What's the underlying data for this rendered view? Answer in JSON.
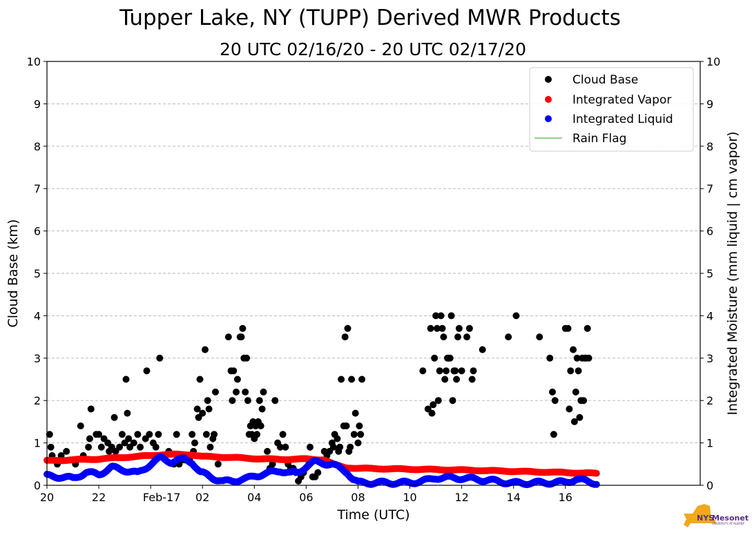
{
  "chart_data": {
    "type": "scatter",
    "title": "Tupper Lake, NY (TUPP) Derived MWR Products",
    "subtitle": "20 UTC 02/16/20 - 20 UTC 02/17/20",
    "xlabel": "Time (UTC)",
    "ylabel": "Cloud Base (km)",
    "y2label": "Integrated Moisture (mm liquid | cm vapor)",
    "xlim": [
      20,
      45.2
    ],
    "ylim": [
      0,
      10
    ],
    "y2lim": [
      0,
      10
    ],
    "x_units": "hours since 00 UTC 02/16/20",
    "x_ticks": [
      {
        "x": 20,
        "label": "20"
      },
      {
        "x": 22,
        "label": "22"
      },
      {
        "x": 24,
        "label": "Feb-17"
      },
      {
        "x": 26,
        "label": "02"
      },
      {
        "x": 28,
        "label": "04"
      },
      {
        "x": 30,
        "label": "06"
      },
      {
        "x": 32,
        "label": "08"
      },
      {
        "x": 34,
        "label": "10"
      },
      {
        "x": 36,
        "label": "12"
      },
      {
        "x": 38,
        "label": "14"
      },
      {
        "x": 40,
        "label": "16"
      }
    ],
    "y_ticks": [
      "0",
      "1",
      "2",
      "3",
      "4",
      "5",
      "6",
      "7",
      "8",
      "9",
      "10"
    ],
    "grid": "horizontal dashed",
    "legend_position": "top-right",
    "series": [
      {
        "name": "Cloud Base",
        "color": "#000000",
        "marker": "circle",
        "points": [
          [
            20.1,
            1.2
          ],
          [
            20.15,
            0.9
          ],
          [
            20.2,
            0.7
          ],
          [
            20.4,
            0.5
          ],
          [
            20.55,
            0.7
          ],
          [
            20.75,
            0.8
          ],
          [
            20.9,
            0.6
          ],
          [
            21.1,
            0.5
          ],
          [
            21.3,
            1.4
          ],
          [
            21.4,
            0.7
          ],
          [
            21.6,
            0.9
          ],
          [
            21.65,
            1.1
          ],
          [
            21.7,
            1.8
          ],
          [
            21.9,
            1.2
          ],
          [
            22.0,
            1.2
          ],
          [
            22.1,
            0.9
          ],
          [
            22.2,
            1.1
          ],
          [
            22.35,
            1.0
          ],
          [
            22.4,
            0.8
          ],
          [
            22.5,
            0.9
          ],
          [
            22.6,
            1.6
          ],
          [
            22.65,
            0.8
          ],
          [
            22.8,
            0.9
          ],
          [
            22.9,
            1.2
          ],
          [
            23.0,
            1.0
          ],
          [
            23.05,
            2.5
          ],
          [
            23.1,
            1.7
          ],
          [
            23.15,
            1.1
          ],
          [
            23.2,
            0.9
          ],
          [
            23.35,
            1.0
          ],
          [
            23.5,
            1.2
          ],
          [
            23.6,
            0.9
          ],
          [
            23.8,
            1.1
          ],
          [
            23.85,
            2.7
          ],
          [
            23.95,
            1.2
          ],
          [
            24.1,
            1.0
          ],
          [
            24.2,
            0.9
          ],
          [
            24.3,
            1.2
          ],
          [
            24.35,
            3.0
          ],
          [
            24.5,
            0.7
          ],
          [
            24.7,
            0.8
          ],
          [
            24.9,
            0.5
          ],
          [
            25.0,
            1.2
          ],
          [
            25.1,
            0.5
          ],
          [
            25.3,
            0.6
          ],
          [
            25.5,
            0.6
          ],
          [
            25.6,
            1.2
          ],
          [
            25.65,
            0.8
          ],
          [
            25.7,
            1.0
          ],
          [
            25.8,
            1.8
          ],
          [
            25.85,
            1.6
          ],
          [
            25.9,
            2.5
          ],
          [
            26.0,
            1.7
          ],
          [
            26.1,
            3.2
          ],
          [
            26.15,
            1.2
          ],
          [
            26.2,
            2.0
          ],
          [
            26.25,
            1.8
          ],
          [
            26.3,
            0.9
          ],
          [
            26.4,
            1.1
          ],
          [
            26.45,
            1.2
          ],
          [
            26.5,
            2.2
          ],
          [
            26.6,
            0.5
          ],
          [
            27.0,
            3.5
          ],
          [
            27.1,
            2.7
          ],
          [
            27.15,
            2.0
          ],
          [
            27.2,
            2.7
          ],
          [
            27.3,
            2.2
          ],
          [
            27.35,
            2.5
          ],
          [
            27.45,
            3.5
          ],
          [
            27.5,
            3.5
          ],
          [
            27.55,
            3.7
          ],
          [
            27.6,
            3.0
          ],
          [
            27.65,
            2.2
          ],
          [
            27.7,
            3.0
          ],
          [
            27.75,
            2.0
          ],
          [
            27.8,
            1.2
          ],
          [
            27.85,
            1.4
          ],
          [
            27.9,
            1.2
          ],
          [
            27.95,
            1.5
          ],
          [
            28.0,
            1.1
          ],
          [
            28.05,
            1.4
          ],
          [
            28.1,
            1.2
          ],
          [
            28.15,
            1.5
          ],
          [
            28.2,
            2.0
          ],
          [
            28.25,
            1.4
          ],
          [
            28.3,
            1.8
          ],
          [
            28.35,
            2.2
          ],
          [
            28.5,
            0.8
          ],
          [
            28.6,
            0.4
          ],
          [
            28.7,
            0.5
          ],
          [
            28.8,
            2.0
          ],
          [
            28.9,
            1.0
          ],
          [
            29.0,
            0.9
          ],
          [
            29.1,
            1.2
          ],
          [
            29.2,
            0.9
          ],
          [
            29.3,
            0.5
          ],
          [
            29.4,
            0.4
          ],
          [
            29.5,
            0.4
          ],
          [
            29.6,
            0.3
          ],
          [
            29.7,
            0.1
          ],
          [
            29.8,
            0.2
          ],
          [
            29.9,
            0.3
          ],
          [
            30.1,
            0.5
          ],
          [
            30.15,
            0.9
          ],
          [
            30.25,
            0.2
          ],
          [
            30.35,
            0.2
          ],
          [
            30.45,
            0.3
          ],
          [
            30.6,
            0.6
          ],
          [
            30.7,
            0.8
          ],
          [
            30.8,
            0.7
          ],
          [
            30.9,
            0.8
          ],
          [
            31.0,
            1.0
          ],
          [
            31.05,
            0.9
          ],
          [
            31.1,
            1.2
          ],
          [
            31.2,
            1.1
          ],
          [
            31.25,
            0.8
          ],
          [
            31.3,
            0.9
          ],
          [
            31.35,
            2.5
          ],
          [
            31.45,
            1.4
          ],
          [
            31.5,
            3.5
          ],
          [
            31.55,
            1.4
          ],
          [
            31.6,
            3.7
          ],
          [
            31.65,
            0.8
          ],
          [
            31.7,
            0.9
          ],
          [
            31.75,
            2.5
          ],
          [
            31.85,
            1.2
          ],
          [
            31.9,
            1.7
          ],
          [
            32.0,
            1.0
          ],
          [
            32.05,
            1.4
          ],
          [
            32.1,
            1.2
          ],
          [
            32.15,
            2.5
          ],
          [
            34.5,
            2.7
          ],
          [
            34.7,
            1.8
          ],
          [
            34.8,
            3.7
          ],
          [
            34.85,
            1.7
          ],
          [
            34.9,
            1.9
          ],
          [
            34.95,
            3.0
          ],
          [
            35.0,
            4.0
          ],
          [
            35.05,
            3.7
          ],
          [
            35.1,
            2.0
          ],
          [
            35.15,
            2.7
          ],
          [
            35.2,
            4.0
          ],
          [
            35.25,
            3.7
          ],
          [
            35.3,
            3.5
          ],
          [
            35.35,
            2.5
          ],
          [
            35.4,
            2.7
          ],
          [
            35.45,
            3.0
          ],
          [
            35.5,
            3.0
          ],
          [
            35.55,
            3.0
          ],
          [
            35.6,
            4.0
          ],
          [
            35.65,
            2.0
          ],
          [
            35.7,
            2.7
          ],
          [
            35.75,
            2.7
          ],
          [
            35.8,
            2.5
          ],
          [
            35.85,
            3.5
          ],
          [
            35.9,
            3.7
          ],
          [
            36.0,
            2.7
          ],
          [
            36.2,
            3.5
          ],
          [
            36.3,
            3.7
          ],
          [
            36.4,
            2.5
          ],
          [
            36.45,
            2.7
          ],
          [
            36.8,
            3.2
          ],
          [
            37.8,
            3.5
          ],
          [
            38.1,
            4.0
          ],
          [
            39.0,
            3.5
          ],
          [
            39.4,
            3.0
          ],
          [
            39.5,
            2.2
          ],
          [
            39.55,
            1.2
          ],
          [
            39.6,
            2.0
          ],
          [
            40.0,
            3.7
          ],
          [
            40.1,
            3.7
          ],
          [
            40.15,
            1.8
          ],
          [
            40.2,
            2.7
          ],
          [
            40.3,
            3.2
          ],
          [
            40.35,
            1.5
          ],
          [
            40.4,
            2.2
          ],
          [
            40.45,
            3.0
          ],
          [
            40.5,
            2.7
          ],
          [
            40.55,
            1.6
          ],
          [
            40.6,
            2.0
          ],
          [
            40.65,
            3.0
          ],
          [
            40.7,
            2.0
          ],
          [
            40.75,
            3.0
          ],
          [
            40.8,
            3.0
          ],
          [
            40.85,
            3.7
          ],
          [
            40.9,
            3.0
          ]
        ]
      },
      {
        "name": "Integrated Vapor",
        "color": "#ff0000",
        "marker": "circle",
        "profile": [
          [
            20,
            0.58
          ],
          [
            22,
            0.62
          ],
          [
            24,
            0.7
          ],
          [
            24.6,
            0.73
          ],
          [
            25.6,
            0.72
          ],
          [
            26,
            0.68
          ],
          [
            27,
            0.66
          ],
          [
            28,
            0.63
          ],
          [
            29,
            0.61
          ],
          [
            30,
            0.62
          ],
          [
            30.7,
            0.6
          ],
          [
            31.1,
            0.48
          ],
          [
            31.5,
            0.42
          ],
          [
            32,
            0.4
          ],
          [
            34,
            0.38
          ],
          [
            36,
            0.36
          ],
          [
            38,
            0.33
          ],
          [
            40,
            0.3
          ],
          [
            41.2,
            0.28
          ]
        ],
        "step": 0.05
      },
      {
        "name": "Integrated Liquid",
        "color": "#0000ff",
        "marker": "circle",
        "profile": [
          [
            20,
            0.22
          ],
          [
            20.5,
            0.2
          ],
          [
            21,
            0.16
          ],
          [
            21.5,
            0.3
          ],
          [
            22,
            0.26
          ],
          [
            22.5,
            0.42
          ],
          [
            23,
            0.36
          ],
          [
            23.5,
            0.28
          ],
          [
            24,
            0.5
          ],
          [
            24.4,
            0.65
          ],
          [
            24.8,
            0.55
          ],
          [
            25.3,
            0.62
          ],
          [
            25.6,
            0.55
          ],
          [
            25.9,
            0.3
          ],
          [
            26.2,
            0.24
          ],
          [
            26.5,
            0.15
          ],
          [
            26.8,
            0.08
          ],
          [
            27.3,
            0.12
          ],
          [
            27.7,
            0.15
          ],
          [
            28,
            0.22
          ],
          [
            28.5,
            0.28
          ],
          [
            29,
            0.35
          ],
          [
            29.4,
            0.28
          ],
          [
            29.7,
            0.3
          ],
          [
            30,
            0.45
          ],
          [
            30.3,
            0.55
          ],
          [
            30.7,
            0.52
          ],
          [
            31,
            0.5
          ],
          [
            31.3,
            0.4
          ],
          [
            31.6,
            0.3
          ],
          [
            31.8,
            0.15
          ],
          [
            32,
            0.06
          ],
          [
            34,
            0.06
          ],
          [
            34.7,
            0.12
          ],
          [
            35,
            0.18
          ],
          [
            36,
            0.17
          ],
          [
            37,
            0.12
          ],
          [
            38,
            0.05
          ],
          [
            40,
            0.07
          ],
          [
            40.4,
            0.14
          ],
          [
            40.8,
            0.1
          ],
          [
            41.2,
            0.05
          ]
        ],
        "step": 0.04
      },
      {
        "name": "Rain Flag",
        "color": "#6cbf6c",
        "marker": "line",
        "points": []
      }
    ]
  },
  "logo": {
    "name": "NYS Mesonet",
    "text_nys": "NYS",
    "text_mesonet": "Mesonet",
    "text_sub": "UNIVERSITY AT ALBANY",
    "state_color": "#f2a81d"
  }
}
